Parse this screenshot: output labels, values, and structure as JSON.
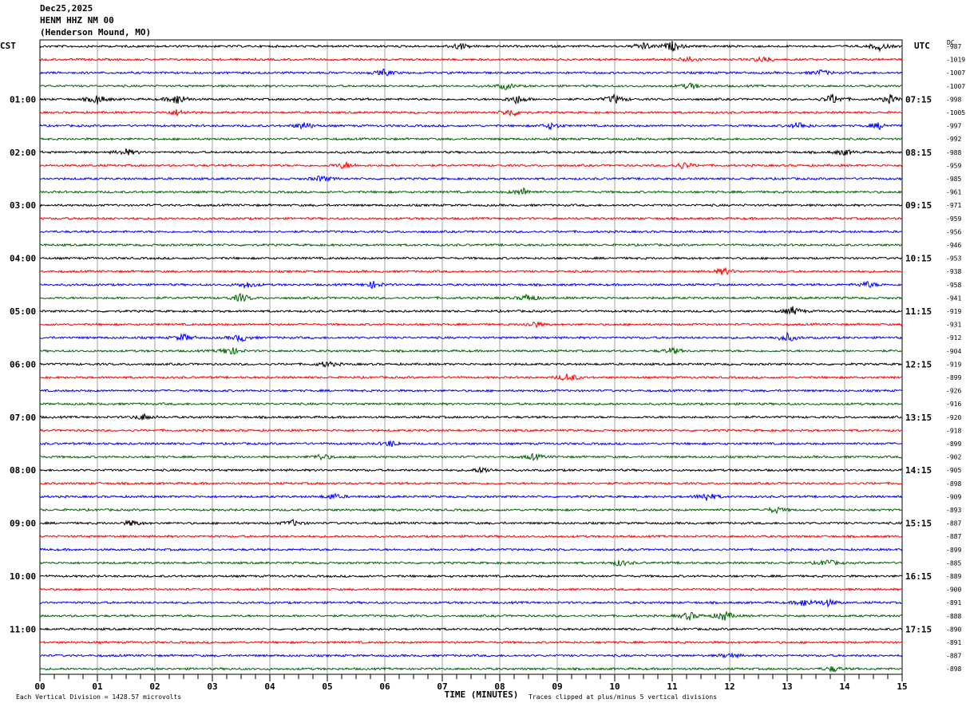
{
  "header": {
    "date": "Dec25,2025",
    "station": "HENM HHZ NM 00",
    "location": "(Henderson Mound, MO)"
  },
  "axis_labels": {
    "left_timezone": "CST",
    "right_timezone": "UTC",
    "dc_label": "DC",
    "xlabel": "TIME (MINUTES)"
  },
  "footer": {
    "scale_note": "Each Vertical Division = 1428.57 microvolts",
    "clip_note": "Traces clipped at plus/minus 5 vertical divisions"
  },
  "chart_data": {
    "type": "line",
    "title": "HENM HHZ NM 00 (Henderson Mound, MO) Dec25,2025",
    "xlabel": "TIME (MINUTES)",
    "xlim": [
      0,
      15
    ],
    "x_ticks": [
      "00",
      "01",
      "02",
      "03",
      "04",
      "05",
      "06",
      "07",
      "08",
      "09",
      "10",
      "11",
      "12",
      "13",
      "14",
      "15"
    ],
    "row_count": 48,
    "row_colors": [
      "#000000",
      "#ff0000",
      "#0000ff",
      "#006400"
    ],
    "left_hour_labels": [
      "01:00",
      "02:00",
      "03:00",
      "04:00",
      "05:00",
      "06:00",
      "07:00",
      "08:00",
      "09:00",
      "10:00",
      "11:00"
    ],
    "right_hour_labels": [
      "07:15",
      "08:15",
      "09:15",
      "10:15",
      "11:15",
      "12:15",
      "13:15",
      "14:15",
      "15:15",
      "16:15",
      "17:15"
    ],
    "dc_offsets": [
      "-987",
      "-1019",
      "-1007",
      "-1007",
      "-998",
      "-1005",
      "-997",
      "-992",
      "-988",
      "-959",
      "-985",
      "-961",
      "-971",
      "-959",
      "-956",
      "-946",
      "-953",
      "-938",
      "-958",
      "-941",
      "-919",
      "-931",
      "-912",
      "-904",
      "-919",
      "-899",
      "-926",
      "-916",
      "-920",
      "-918",
      "-899",
      "-902",
      "-905",
      "-898",
      "-909",
      "-893",
      "-887",
      "-887",
      "-899",
      "-885",
      "-889",
      "-900",
      "-891",
      "-888",
      "-890",
      "-891",
      "-887",
      "-898"
    ],
    "events": [
      {
        "row": 0,
        "minute": 7.3,
        "amp": 1.3
      },
      {
        "row": 0,
        "minute": 10.5,
        "amp": 1.4
      },
      {
        "row": 0,
        "minute": 11.0,
        "amp": 1.8
      },
      {
        "row": 0,
        "minute": 14.6,
        "amp": 1.5
      },
      {
        "row": 1,
        "minute": 11.3,
        "amp": 1.2
      },
      {
        "row": 1,
        "minute": 12.6,
        "amp": 1.3
      },
      {
        "row": 2,
        "minute": 6.0,
        "amp": 1.3
      },
      {
        "row": 2,
        "minute": 13.6,
        "amp": 1.1
      },
      {
        "row": 3,
        "minute": 8.1,
        "amp": 1.2
      },
      {
        "row": 3,
        "minute": 11.3,
        "amp": 1.2
      },
      {
        "row": 4,
        "minute": 1.0,
        "amp": 1.8
      },
      {
        "row": 4,
        "minute": 2.4,
        "amp": 2.2
      },
      {
        "row": 4,
        "minute": 8.3,
        "amp": 1.8
      },
      {
        "row": 4,
        "minute": 10.0,
        "amp": 1.8
      },
      {
        "row": 4,
        "minute": 13.8,
        "amp": 2.0
      },
      {
        "row": 4,
        "minute": 14.8,
        "amp": 1.6
      },
      {
        "row": 5,
        "minute": 2.4,
        "amp": 1.2
      },
      {
        "row": 5,
        "minute": 8.2,
        "amp": 1.6
      },
      {
        "row": 6,
        "minute": 4.6,
        "amp": 1.5
      },
      {
        "row": 6,
        "minute": 8.9,
        "amp": 1.2
      },
      {
        "row": 6,
        "minute": 13.2,
        "amp": 1.4
      },
      {
        "row": 6,
        "minute": 14.6,
        "amp": 1.2
      },
      {
        "row": 8,
        "minute": 1.5,
        "amp": 1.3
      },
      {
        "row": 8,
        "minute": 14.0,
        "amp": 1.2
      },
      {
        "row": 9,
        "minute": 5.3,
        "amp": 1.3
      },
      {
        "row": 9,
        "minute": 11.2,
        "amp": 1.3
      },
      {
        "row": 10,
        "minute": 4.9,
        "amp": 1.2
      },
      {
        "row": 11,
        "minute": 8.4,
        "amp": 1.5
      },
      {
        "row": 17,
        "minute": 11.9,
        "amp": 1.4
      },
      {
        "row": 18,
        "minute": 3.6,
        "amp": 1.2
      },
      {
        "row": 18,
        "minute": 5.8,
        "amp": 1.3
      },
      {
        "row": 18,
        "minute": 14.4,
        "amp": 1.2
      },
      {
        "row": 19,
        "minute": 3.5,
        "amp": 1.6
      },
      {
        "row": 19,
        "minute": 8.5,
        "amp": 1.5
      },
      {
        "row": 20,
        "minute": 13.1,
        "amp": 1.7
      },
      {
        "row": 21,
        "minute": 8.6,
        "amp": 1.2
      },
      {
        "row": 22,
        "minute": 2.5,
        "amp": 1.4
      },
      {
        "row": 22,
        "minute": 3.5,
        "amp": 1.5
      },
      {
        "row": 22,
        "minute": 13.0,
        "amp": 1.7
      },
      {
        "row": 23,
        "minute": 3.3,
        "amp": 1.8
      },
      {
        "row": 23,
        "minute": 11.0,
        "amp": 1.2
      },
      {
        "row": 24,
        "minute": 5.0,
        "amp": 1.2
      },
      {
        "row": 25,
        "minute": 9.2,
        "amp": 1.8
      },
      {
        "row": 28,
        "minute": 1.8,
        "amp": 1.2
      },
      {
        "row": 30,
        "minute": 6.1,
        "amp": 1.2
      },
      {
        "row": 31,
        "minute": 4.9,
        "amp": 1.2
      },
      {
        "row": 31,
        "minute": 8.6,
        "amp": 1.2
      },
      {
        "row": 32,
        "minute": 7.7,
        "amp": 1.2
      },
      {
        "row": 34,
        "minute": 5.1,
        "amp": 1.1
      },
      {
        "row": 34,
        "minute": 11.6,
        "amp": 1.8
      },
      {
        "row": 35,
        "minute": 12.8,
        "amp": 1.2
      },
      {
        "row": 36,
        "minute": 1.6,
        "amp": 1.1
      },
      {
        "row": 36,
        "minute": 4.4,
        "amp": 1.1
      },
      {
        "row": 39,
        "minute": 10.1,
        "amp": 1.2
      },
      {
        "row": 39,
        "minute": 13.7,
        "amp": 1.3
      },
      {
        "row": 42,
        "minute": 13.3,
        "amp": 1.5
      },
      {
        "row": 42,
        "minute": 13.7,
        "amp": 1.3
      },
      {
        "row": 43,
        "minute": 11.3,
        "amp": 1.6
      },
      {
        "row": 43,
        "minute": 11.9,
        "amp": 2.0
      },
      {
        "row": 46,
        "minute": 12.0,
        "amp": 1.1
      },
      {
        "row": 47,
        "minute": 13.8,
        "amp": 1.1
      }
    ]
  }
}
